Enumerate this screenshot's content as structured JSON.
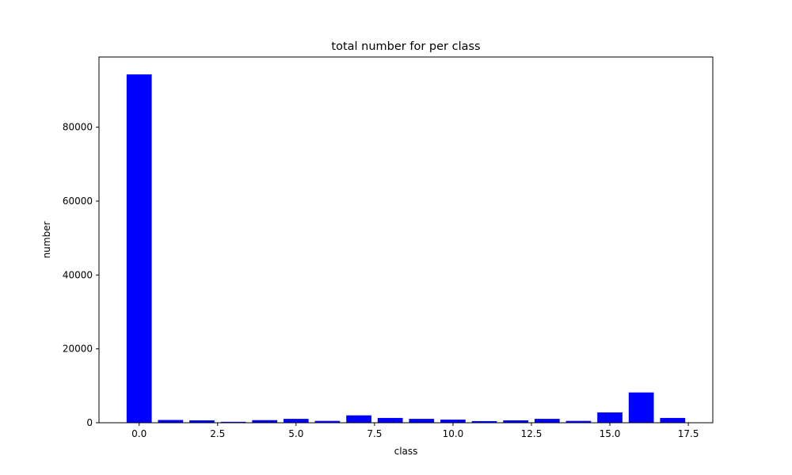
{
  "chart_data": {
    "type": "bar",
    "title": "total number for per class",
    "xlabel": "class",
    "ylabel": "number",
    "x": [
      0,
      1,
      2,
      3,
      4,
      5,
      6,
      7,
      8,
      9,
      10,
      11,
      12,
      13,
      14,
      15,
      16,
      17
    ],
    "values": [
      94300,
      750,
      650,
      250,
      700,
      1050,
      500,
      2000,
      1300,
      1050,
      850,
      450,
      650,
      1050,
      500,
      2800,
      8200,
      1300
    ],
    "bar_width": 0.8,
    "xlim": [
      -1.28,
      18.28
    ],
    "ylim": [
      0,
      99000
    ],
    "xticks": [
      0,
      2.5,
      5,
      7.5,
      10,
      12.5,
      15,
      17.5
    ],
    "xtick_labels": [
      "0.0",
      "2.5",
      "5.0",
      "7.5",
      "10.0",
      "12.5",
      "15.0",
      "17.5"
    ],
    "yticks": [
      0,
      20000,
      40000,
      60000,
      80000
    ],
    "ytick_labels": [
      "0",
      "20000",
      "40000",
      "60000",
      "80000"
    ],
    "grid": false,
    "bar_color": "#0000ff"
  }
}
